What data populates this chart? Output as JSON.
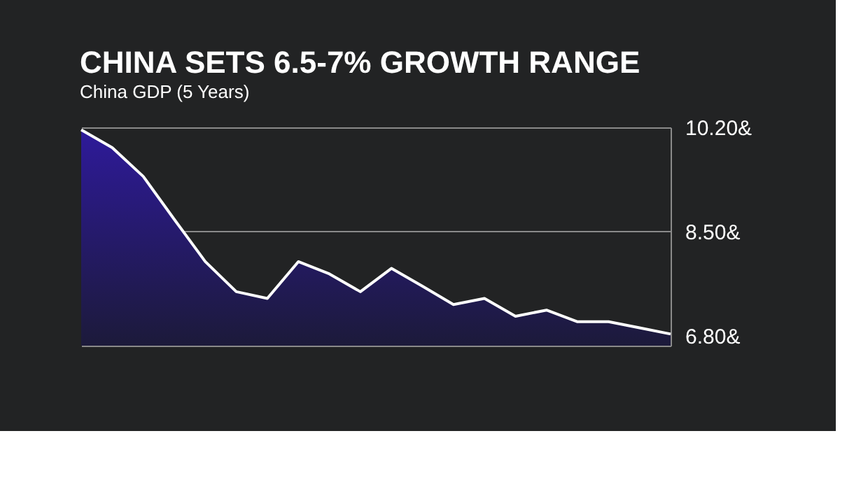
{
  "chart_data": {
    "type": "area",
    "title": "CHINA SETS 6.5-7% GROWTH RANGE",
    "subtitle": "China GDP (5 Years)",
    "categories": [
      null,
      null,
      null,
      null,
      null,
      null,
      null,
      null,
      null,
      null,
      null,
      null,
      null,
      null,
      null,
      null,
      null,
      null,
      null,
      null
    ],
    "series": [
      {
        "color": "#ffffff",
        "values": [
          10.16,
          9.87,
          9.4,
          8.7,
          8.01,
          7.52,
          7.41,
          8.01,
          7.81,
          7.52,
          7.9,
          7.61,
          7.31,
          7.41,
          7.12,
          7.22,
          7.03,
          7.03,
          6.93,
          6.83
        ]
      }
    ],
    "ylim": [
      6.64,
      10.2
    ],
    "yticks": [
      {
        "value": 6.8,
        "label": "6.80&"
      },
      {
        "value": 8.5,
        "label": "8.50&"
      },
      {
        "value": 10.2,
        "label": "10.20&"
      }
    ],
    "grid": "y",
    "tick_labels": "y"
  }
}
